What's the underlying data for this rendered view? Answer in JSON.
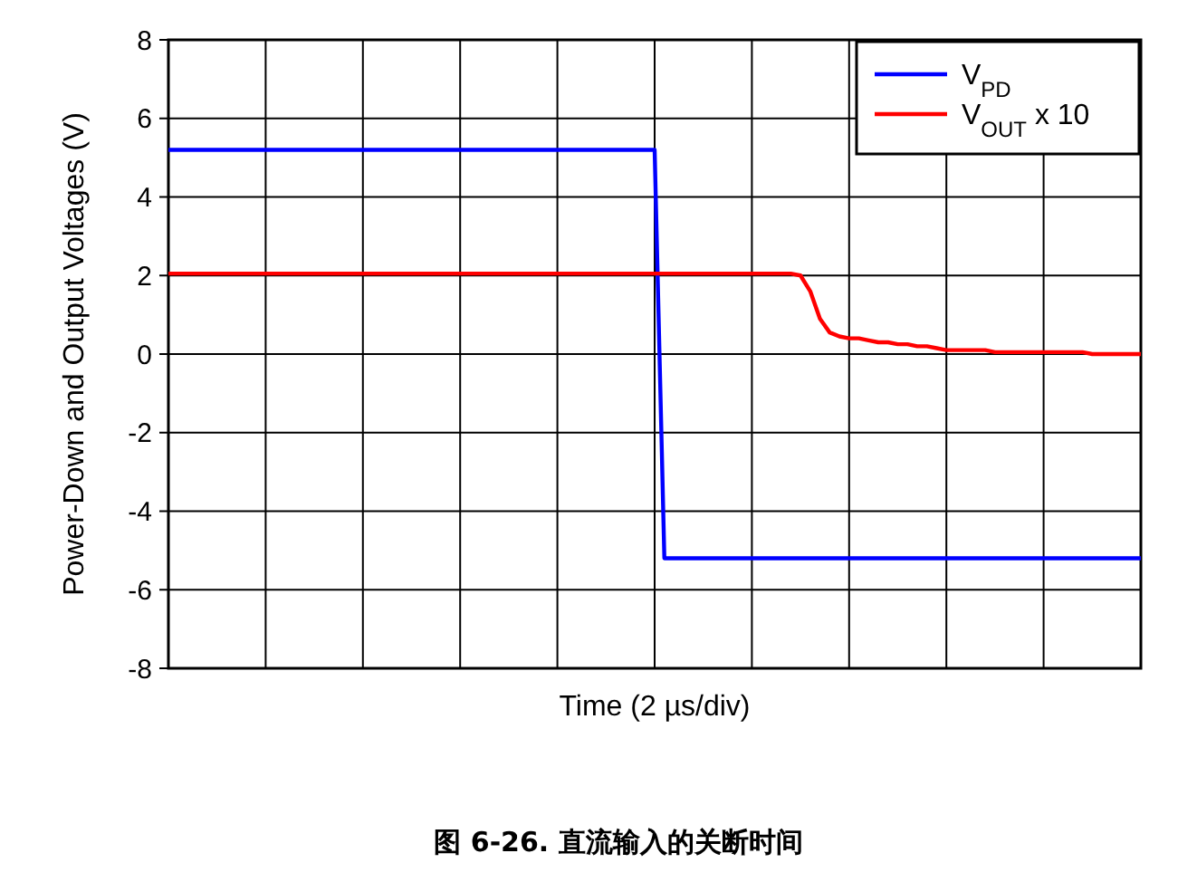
{
  "chart_data": {
    "type": "line",
    "ylabel": "Power-Down and Output Voltages (V)",
    "xlabel": "Time (2 µs/div)",
    "annotations": [
      "图 6-26. 直流输入的关断时间"
    ],
    "categories": [
      null,
      null,
      null,
      null,
      null,
      null,
      null,
      null,
      null,
      null,
      null,
      null,
      null,
      null,
      null,
      null,
      null,
      null,
      null,
      null,
      null,
      null,
      null,
      null,
      null,
      null,
      null,
      null,
      null,
      null,
      null,
      null,
      null,
      null,
      null,
      null,
      null,
      null,
      null,
      null,
      null,
      null,
      null,
      null,
      null,
      null,
      null,
      null,
      null,
      null,
      null,
      null,
      null,
      null,
      null,
      null,
      null,
      null,
      null,
      null,
      null,
      null,
      null,
      null,
      null,
      null,
      null,
      null,
      null,
      null,
      null,
      null,
      null,
      null,
      null,
      null,
      null,
      null,
      null,
      null,
      null,
      null,
      null,
      null,
      null,
      null,
      null,
      null,
      null,
      null,
      null,
      null,
      null,
      null,
      null,
      null,
      null,
      null,
      null,
      null,
      null
    ],
    "ylim": [
      -8,
      8
    ],
    "yticks": [
      -8,
      -6,
      -4,
      -2,
      0,
      2,
      4,
      6,
      8
    ],
    "grid": true,
    "legend": "top right",
    "series": [
      {
        "name": "V$_{PD}$",
        "color": "#0000ff",
        "values": [
          5.2,
          5.2,
          5.2,
          5.2,
          5.2,
          5.2,
          5.2,
          5.2,
          5.2,
          5.2,
          5.2,
          5.2,
          5.2,
          5.2,
          5.2,
          5.2,
          5.2,
          5.2,
          5.2,
          5.2,
          5.2,
          5.2,
          5.2,
          5.2,
          5.2,
          5.2,
          5.2,
          5.2,
          5.2,
          5.2,
          5.2,
          5.2,
          5.2,
          5.2,
          5.2,
          5.2,
          5.2,
          5.2,
          5.2,
          5.2,
          5.2,
          5.2,
          5.2,
          5.2,
          5.2,
          5.2,
          5.2,
          5.2,
          5.2,
          5.2,
          5.2,
          -5.2,
          -5.2,
          -5.2,
          -5.2,
          -5.2,
          -5.2,
          -5.2,
          -5.2,
          -5.2,
          -5.2,
          -5.2,
          -5.2,
          -5.2,
          -5.2,
          -5.2,
          -5.2,
          -5.2,
          -5.2,
          -5.2,
          -5.2,
          -5.2,
          -5.2,
          -5.2,
          -5.2,
          -5.2,
          -5.2,
          -5.2,
          -5.2,
          -5.2,
          -5.2,
          -5.2,
          -5.2,
          -5.2,
          -5.2,
          -5.2,
          -5.2,
          -5.2,
          -5.2,
          -5.2,
          -5.2,
          -5.2,
          -5.2,
          -5.2,
          -5.2,
          -5.2,
          -5.2,
          -5.2,
          -5.2,
          -5.2,
          -5.2
        ]
      },
      {
        "name": "V$_{OUT}$ x 10",
        "color": "#ff0000",
        "values": [
          2.05,
          2.05,
          2.05,
          2.05,
          2.05,
          2.05,
          2.05,
          2.05,
          2.05,
          2.05,
          2.05,
          2.05,
          2.05,
          2.05,
          2.05,
          2.05,
          2.05,
          2.05,
          2.05,
          2.05,
          2.05,
          2.05,
          2.05,
          2.05,
          2.05,
          2.05,
          2.05,
          2.05,
          2.05,
          2.05,
          2.05,
          2.05,
          2.05,
          2.05,
          2.05,
          2.05,
          2.05,
          2.05,
          2.05,
          2.05,
          2.05,
          2.05,
          2.05,
          2.05,
          2.05,
          2.05,
          2.05,
          2.05,
          2.05,
          2.05,
          2.05,
          2.05,
          2.05,
          2.05,
          2.05,
          2.05,
          2.05,
          2.05,
          2.05,
          2.05,
          2.05,
          2.05,
          2.05,
          2.05,
          2.05,
          2.0,
          1.6,
          0.9,
          0.55,
          0.45,
          0.4,
          0.4,
          0.35,
          0.3,
          0.3,
          0.25,
          0.25,
          0.2,
          0.2,
          0.15,
          0.1,
          0.1,
          0.1,
          0.1,
          0.1,
          0.05,
          0.05,
          0.05,
          0.05,
          0.05,
          0.05,
          0.05,
          0.05,
          0.05,
          0.05,
          0,
          0,
          0,
          0,
          0,
          0
        ]
      }
    ]
  }
}
